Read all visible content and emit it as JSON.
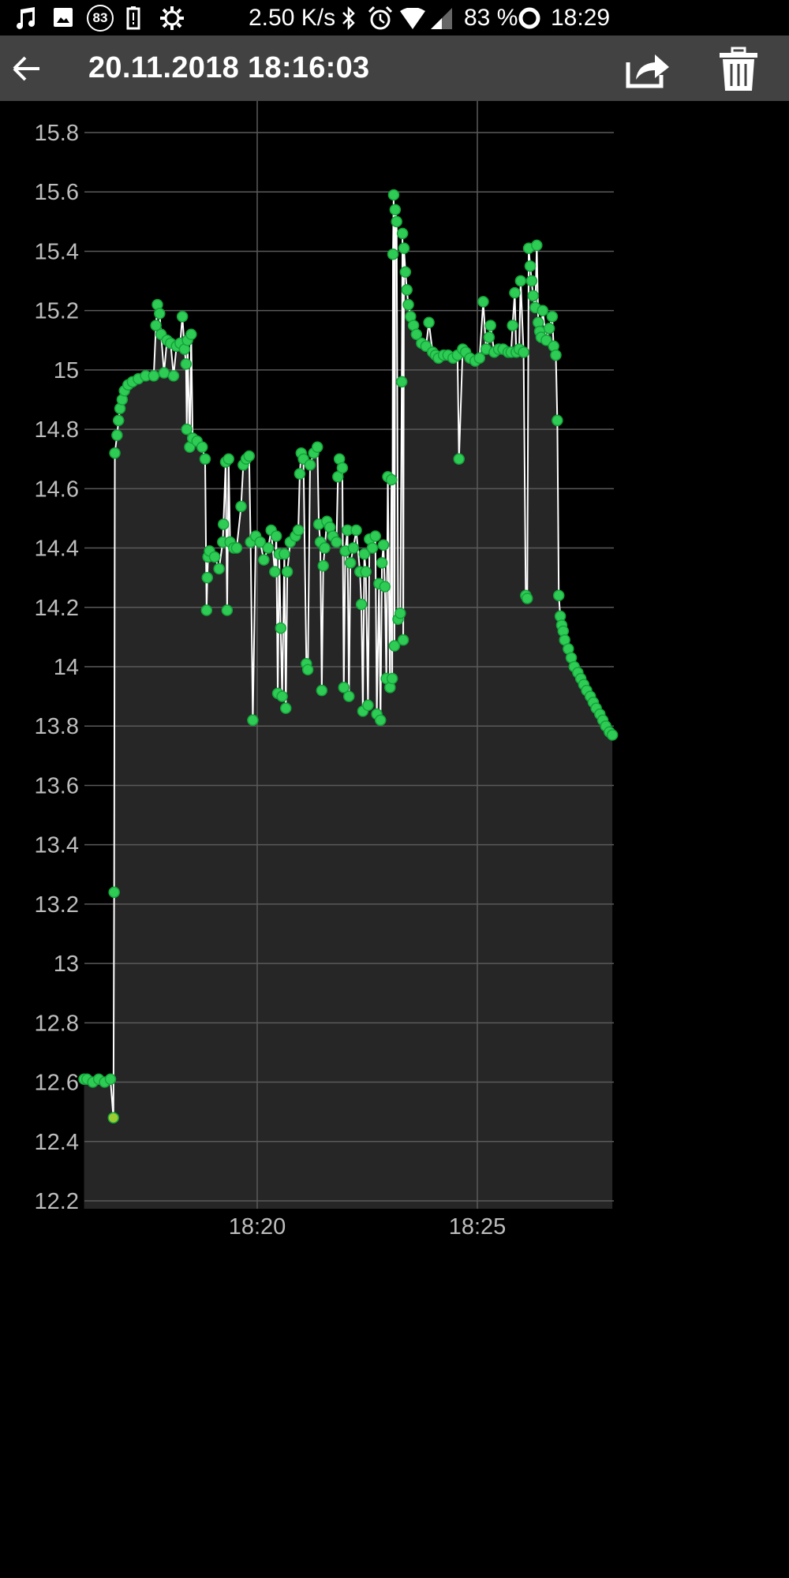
{
  "status_bar": {
    "icons": [
      "music-note-icon",
      "image-icon",
      "notification-count-icon",
      "battery-saver-icon",
      "settings-gear-icon"
    ],
    "notification_count": "83",
    "net_speed": "2.50 K/s",
    "right_icons": [
      "bluetooth-icon",
      "alarm-icon",
      "wifi-icon",
      "cell-signal-icon",
      "battery-ring-icon"
    ],
    "battery": "83 %",
    "time": "18:29"
  },
  "app_bar": {
    "title": "20.11.2018 18:16:03",
    "back_icon": "arrow-left-icon",
    "share_icon": "share-icon",
    "delete_icon": "trash-icon"
  },
  "colors": {
    "plot_background": "#262626",
    "line": "#ffffff",
    "point_fill": "#2ecc55",
    "point_stroke": "#15a33a",
    "first_low_point": "#9acd32",
    "grid": "#5a5a5a"
  },
  "chart_data": {
    "type": "line",
    "markers": true,
    "area_fill": true,
    "grid": true,
    "xlim": [
      "18:16:04",
      "18:28:06"
    ],
    "ylim": [
      12.2,
      15.8
    ],
    "x_ticks": [
      "18:20",
      "18:25"
    ],
    "y_ticks": [
      "12.2",
      "12.4",
      "12.6",
      "12.8",
      "13",
      "13.2",
      "13.4",
      "13.6",
      "13.8",
      "14",
      "14.2",
      "14.4",
      "14.6",
      "14.8",
      "15",
      "15.2",
      "15.4",
      "15.6",
      "15.8"
    ],
    "points": [
      [
        "18:16:04",
        12.61
      ],
      [
        "18:16:08",
        12.61
      ],
      [
        "18:16:16",
        12.6
      ],
      [
        "18:16:24",
        12.61
      ],
      [
        "18:16:32",
        12.6
      ],
      [
        "18:16:40",
        12.61
      ],
      [
        "18:16:44",
        12.48
      ],
      [
        "18:16:45",
        13.24
      ],
      [
        "18:16:46",
        14.72
      ],
      [
        "18:16:49",
        14.78
      ],
      [
        "18:16:51",
        14.83
      ],
      [
        "18:16:53",
        14.87
      ],
      [
        "18:16:56",
        14.9
      ],
      [
        "18:16:59",
        14.93
      ],
      [
        "18:17:04",
        14.95
      ],
      [
        "18:17:10",
        14.96
      ],
      [
        "18:17:18",
        14.97
      ],
      [
        "18:17:28",
        14.98
      ],
      [
        "18:17:39",
        14.98
      ],
      [
        "18:17:42",
        15.15
      ],
      [
        "18:17:44",
        15.22
      ],
      [
        "18:17:47",
        15.19
      ],
      [
        "18:17:49",
        15.12
      ],
      [
        "18:17:53",
        14.99
      ],
      [
        "18:17:57",
        15.1
      ],
      [
        "18:18:02",
        15.09
      ],
      [
        "18:18:06",
        14.98
      ],
      [
        "18:18:10",
        15.08
      ],
      [
        "18:18:15",
        15.09
      ],
      [
        "18:18:18",
        15.18
      ],
      [
        "18:18:21",
        15.07
      ],
      [
        "18:18:23",
        15.02
      ],
      [
        "18:18:24",
        14.8
      ],
      [
        "18:18:25",
        15.1
      ],
      [
        "18:18:28",
        14.74
      ],
      [
        "18:18:30",
        15.12
      ],
      [
        "18:18:32",
        14.77
      ],
      [
        "18:18:38",
        14.76
      ],
      [
        "18:18:45",
        14.74
      ],
      [
        "18:18:49",
        14.7
      ],
      [
        "18:18:51",
        14.19
      ],
      [
        "18:18:52",
        14.3
      ],
      [
        "18:18:53",
        14.37
      ],
      [
        "18:18:55",
        14.39
      ],
      [
        "18:19:02",
        14.37
      ],
      [
        "18:19:08",
        14.33
      ],
      [
        "18:19:13",
        14.42
      ],
      [
        "18:19:14",
        14.48
      ],
      [
        "18:19:17",
        14.69
      ],
      [
        "18:19:19",
        14.19
      ],
      [
        "18:19:21",
        14.7
      ],
      [
        "18:19:23",
        14.42
      ],
      [
        "18:19:28",
        14.4
      ],
      [
        "18:19:32",
        14.4
      ],
      [
        "18:19:38",
        14.54
      ],
      [
        "18:19:41",
        14.68
      ],
      [
        "18:19:45",
        14.7
      ],
      [
        "18:19:49",
        14.71
      ],
      [
        "18:19:51",
        14.42
      ],
      [
        "18:19:54",
        13.82
      ],
      [
        "18:19:58",
        14.44
      ],
      [
        "18:20:04",
        14.42
      ],
      [
        "18:20:09",
        14.36
      ],
      [
        "18:20:15",
        14.4
      ],
      [
        "18:20:19",
        14.46
      ],
      [
        "18:20:24",
        14.32
      ],
      [
        "18:20:26",
        14.44
      ],
      [
        "18:20:28",
        13.91
      ],
      [
        "18:20:30",
        14.38
      ],
      [
        "18:20:32",
        14.13
      ],
      [
        "18:20:34",
        13.9
      ],
      [
        "18:20:37",
        14.38
      ],
      [
        "18:20:39",
        13.86
      ],
      [
        "18:20:41",
        14.32
      ],
      [
        "18:20:45",
        14.42
      ],
      [
        "18:20:52",
        14.44
      ],
      [
        "18:20:56",
        14.46
      ],
      [
        "18:20:58",
        14.65
      ],
      [
        "18:21:00",
        14.72
      ],
      [
        "18:21:03",
        14.7
      ],
      [
        "18:21:07",
        14.01
      ],
      [
        "18:21:09",
        13.99
      ],
      [
        "18:21:12",
        14.68
      ],
      [
        "18:21:17",
        14.72
      ],
      [
        "18:21:22",
        14.74
      ],
      [
        "18:21:24",
        14.48
      ],
      [
        "18:21:26",
        14.42
      ],
      [
        "18:21:28",
        13.92
      ],
      [
        "18:21:30",
        14.34
      ],
      [
        "18:21:32",
        14.4
      ],
      [
        "18:21:35",
        14.49
      ],
      [
        "18:21:39",
        14.47
      ],
      [
        "18:21:43",
        14.44
      ],
      [
        "18:21:48",
        14.42
      ],
      [
        "18:21:50",
        14.64
      ],
      [
        "18:21:52",
        14.7
      ],
      [
        "18:21:56",
        14.67
      ],
      [
        "18:21:58",
        13.93
      ],
      [
        "18:22:00",
        14.39
      ],
      [
        "18:22:03",
        14.46
      ],
      [
        "18:22:05",
        13.9
      ],
      [
        "18:22:07",
        14.35
      ],
      [
        "18:22:11",
        14.4
      ],
      [
        "18:22:15",
        14.46
      ],
      [
        "18:22:20",
        14.32
      ],
      [
        "18:22:22",
        14.21
      ],
      [
        "18:22:24",
        13.85
      ],
      [
        "18:22:26",
        14.38
      ],
      [
        "18:22:28",
        14.32
      ],
      [
        "18:22:31",
        13.87
      ],
      [
        "18:22:33",
        14.43
      ],
      [
        "18:22:37",
        14.4
      ],
      [
        "18:22:41",
        14.44
      ],
      [
        "18:22:43",
        13.84
      ],
      [
        "18:22:46",
        14.28
      ],
      [
        "18:22:48",
        13.82
      ],
      [
        "18:22:50",
        14.35
      ],
      [
        "18:22:52",
        14.41
      ],
      [
        "18:22:54",
        14.27
      ],
      [
        "18:22:56",
        13.96
      ],
      [
        "18:22:58",
        14.64
      ],
      [
        "18:23:01",
        13.93
      ],
      [
        "18:23:03",
        14.63
      ],
      [
        "18:23:04",
        13.96
      ],
      [
        "18:23:05",
        15.39
      ],
      [
        "18:23:06",
        15.59
      ],
      [
        "18:23:07",
        14.07
      ],
      [
        "18:23:08",
        15.54
      ],
      [
        "18:23:10",
        15.5
      ],
      [
        "18:23:12",
        14.16
      ],
      [
        "18:23:15",
        14.18
      ],
      [
        "18:23:17",
        14.96
      ],
      [
        "18:23:18",
        15.46
      ],
      [
        "18:23:19",
        14.09
      ],
      [
        "18:23:20",
        15.41
      ],
      [
        "18:23:22",
        15.33
      ],
      [
        "18:23:24",
        15.27
      ],
      [
        "18:23:26",
        15.22
      ],
      [
        "18:23:29",
        15.18
      ],
      [
        "18:23:33",
        15.15
      ],
      [
        "18:23:37",
        15.12
      ],
      [
        "18:23:44",
        15.09
      ],
      [
        "18:23:50",
        15.08
      ],
      [
        "18:23:54",
        15.16
      ],
      [
        "18:23:59",
        15.06
      ],
      [
        "18:24:03",
        15.05
      ],
      [
        "18:24:07",
        15.04
      ],
      [
        "18:24:14",
        15.05
      ],
      [
        "18:24:20",
        15.05
      ],
      [
        "18:24:27",
        15.04
      ],
      [
        "18:24:33",
        15.05
      ],
      [
        "18:24:35",
        14.7
      ],
      [
        "18:24:40",
        15.07
      ],
      [
        "18:24:44",
        15.06
      ],
      [
        "18:24:50",
        15.04
      ],
      [
        "18:24:57",
        15.03
      ],
      [
        "18:25:03",
        15.04
      ],
      [
        "18:25:08",
        15.23
      ],
      [
        "18:25:12",
        15.07
      ],
      [
        "18:25:16",
        15.11
      ],
      [
        "18:25:18",
        15.15
      ],
      [
        "18:25:23",
        15.06
      ],
      [
        "18:25:29",
        15.07
      ],
      [
        "18:25:35",
        15.07
      ],
      [
        "18:25:42",
        15.06
      ],
      [
        "18:25:46",
        15.06
      ],
      [
        "18:25:48",
        15.15
      ],
      [
        "18:25:51",
        15.26
      ],
      [
        "18:25:53",
        15.06
      ],
      [
        "18:25:57",
        15.07
      ],
      [
        "18:25:59",
        15.3
      ],
      [
        "18:26:03",
        15.06
      ],
      [
        "18:26:06",
        14.24
      ],
      [
        "18:26:08",
        14.23
      ],
      [
        "18:26:10",
        15.41
      ],
      [
        "18:26:12",
        15.35
      ],
      [
        "18:26:14",
        15.3
      ],
      [
        "18:26:16",
        15.25
      ],
      [
        "18:26:19",
        15.21
      ],
      [
        "18:26:21",
        15.42
      ],
      [
        "18:26:23",
        15.16
      ],
      [
        "18:26:25",
        15.13
      ],
      [
        "18:26:27",
        15.11
      ],
      [
        "18:26:29",
        15.2
      ],
      [
        "18:26:34",
        15.1
      ],
      [
        "18:26:38",
        15.14
      ],
      [
        "18:26:42",
        15.18
      ],
      [
        "18:26:44",
        15.08
      ],
      [
        "18:26:47",
        15.05
      ],
      [
        "18:26:49",
        14.83
      ],
      [
        "18:26:51",
        14.24
      ],
      [
        "18:26:53",
        14.17
      ],
      [
        "18:26:55",
        14.14
      ],
      [
        "18:26:57",
        14.12
      ],
      [
        "18:26:59",
        14.09
      ],
      [
        "18:27:04",
        14.06
      ],
      [
        "18:27:08",
        14.03
      ],
      [
        "18:27:12",
        14.0
      ],
      [
        "18:27:17",
        13.98
      ],
      [
        "18:27:21",
        13.96
      ],
      [
        "18:27:25",
        13.94
      ],
      [
        "18:27:29",
        13.92
      ],
      [
        "18:27:34",
        13.9
      ],
      [
        "18:27:38",
        13.88
      ],
      [
        "18:27:42",
        13.86
      ],
      [
        "18:27:47",
        13.84
      ],
      [
        "18:27:51",
        13.82
      ],
      [
        "18:27:55",
        13.8
      ],
      [
        "18:28:00",
        13.78
      ],
      [
        "18:28:04",
        13.77
      ]
    ]
  }
}
